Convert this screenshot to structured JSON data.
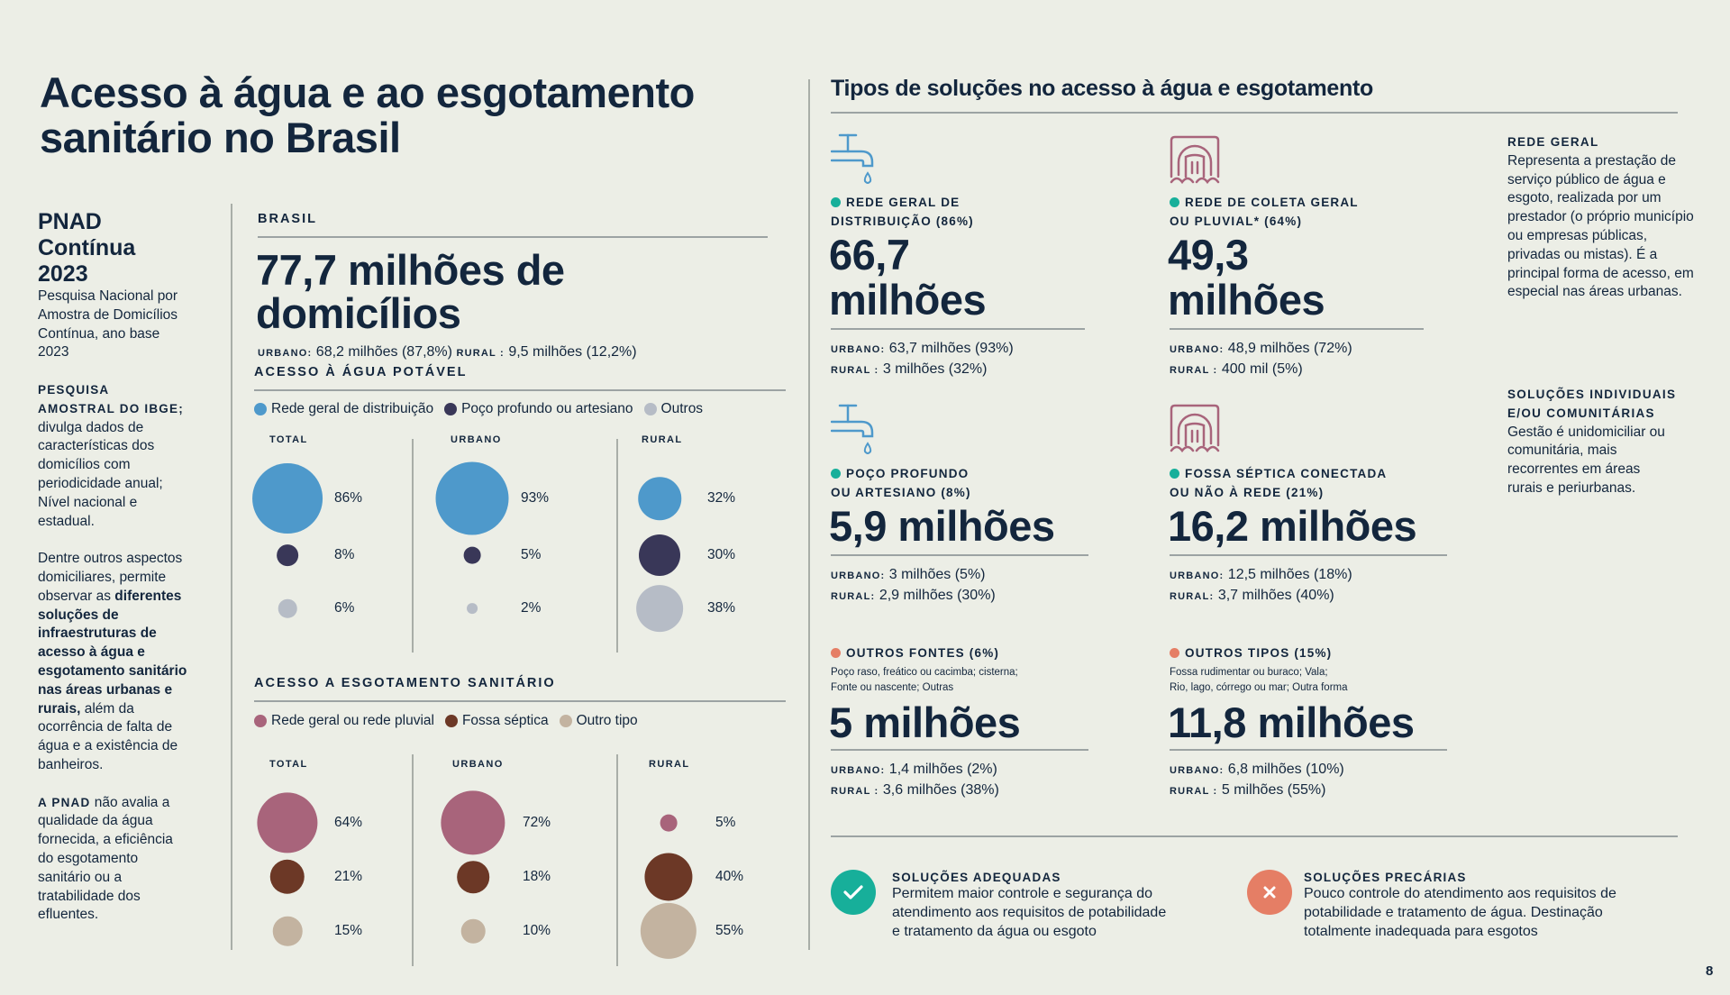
{
  "title": "Acesso à água e ao esgotamento sanitário no Brasil",
  "sidebar": {
    "heading_lines": [
      "PNAD",
      "Contínua",
      "2023"
    ],
    "subtitle": "Pesquisa Nacional por Amostra de Domicílios Contínua, ano base 2023",
    "p1_caps": "PESQUISA AMOSTRAL DO IBGE;",
    "p1_text": "divulga dados de características dos domicílios com periodicidade anual; Nível nacional e estadual.",
    "p2_text_a": "Dentre outros aspectos domiciliares, permite observar as",
    "p2_bold": "diferentes soluções de infraestruturas de acesso à água e esgotamento sanitário nas áreas urbanas e rurais,",
    "p2_text_b": "além da ocorrência de falta de água e a existência de banheiros.",
    "p3_caps": "A PNAD",
    "p3_text": "não avalia a qualidade da água fornecida, a eficiência do esgotamento sanitário ou a tratabilidade dos efluentes."
  },
  "brasil": {
    "label": "BRASIL",
    "headline": "77,7 milhões de domicílios",
    "urbano_label": "URBANO:",
    "urbano_value": "68,2 milhões (87,8%)",
    "rural_label": "RURAL :",
    "rural_value": "9,5 milhões (12,2%)"
  },
  "chart_data": [
    {
      "type": "bubble",
      "title": "ACESSO À ÁGUA POTÁVEL",
      "categories": [
        "TOTAL",
        "URBANO",
        "RURAL"
      ],
      "series": [
        {
          "name": "Rede geral de distribuição",
          "color": "#4E99CB",
          "values": [
            86,
            93,
            32
          ],
          "labels": [
            "86%",
            "93%",
            "32%"
          ]
        },
        {
          "name": "Poço profundo ou artesiano",
          "color": "#393758",
          "values": [
            8,
            5,
            30
          ],
          "labels": [
            "8%",
            "5%",
            "30%"
          ]
        },
        {
          "name": "Outros",
          "color": "#B6BCC6",
          "values": [
            6,
            2,
            38
          ],
          "labels": [
            "6%",
            "2%",
            "38%"
          ]
        }
      ]
    },
    {
      "type": "bubble",
      "title": "ACESSO A ESGOTAMENTO SANITÁRIO",
      "categories": [
        "TOTAL",
        "URBANO",
        "RURAL"
      ],
      "series": [
        {
          "name": "Rede geral ou rede pluvial",
          "color": "#A8647B",
          "values": [
            64,
            72,
            5
          ],
          "labels": [
            "64%",
            "72%",
            "5%"
          ]
        },
        {
          "name": "Fossa séptica",
          "color": "#6C3826",
          "values": [
            21,
            18,
            40
          ],
          "labels": [
            "21%",
            "18%",
            "40%"
          ]
        },
        {
          "name": "Outro tipo",
          "color": "#C3B3A0",
          "values": [
            15,
            10,
            55
          ],
          "labels": [
            "15%",
            "10%",
            "55%"
          ]
        }
      ]
    }
  ],
  "solutions": {
    "title": "Tipos de soluções no acesso à água e esgotamento",
    "cards": [
      {
        "icon": "faucet-icon",
        "bullet_color": "#17AF9A",
        "label_l1": "REDE GERAL DE",
        "label_l2": "DISTRIBUIÇÃO (86%)",
        "num_l1": "66,7",
        "num_l2": "milhões",
        "urbano_k": "URBANO:",
        "urbano_v": "63,7 milhões (93%)",
        "rural_k": "RURAL :",
        "rural_v": "3 milhões (32%)"
      },
      {
        "icon": "sewer-outlet-icon",
        "bullet_color": "#17AF9A",
        "label_l1": "REDE DE COLETA GERAL",
        "label_l2": "OU PLUVIAL*  (64%)",
        "num_l1": "49,3",
        "num_l2": "milhões",
        "urbano_k": "URBANO:",
        "urbano_v": "48,9 milhões  (72%)",
        "rural_k": "RURAL :",
        "rural_v": "400 mil  (5%)"
      },
      {
        "icon": "faucet-icon",
        "bullet_color": "#17AF9A",
        "label_l1": "POÇO PROFUNDO",
        "label_l2": "OU ARTESIANO (8%)",
        "num_l1": "5,9 milhões",
        "urbano_k": "URBANO:",
        "urbano_v": "3 milhões (5%)",
        "rural_k": "RURAL:",
        "rural_v": "2,9 milhões (30%)"
      },
      {
        "icon": "sewer-outlet-icon",
        "bullet_color": "#17AF9A",
        "label_l1": "FOSSA SÉPTICA CONECTADA",
        "label_l2": "OU NÃO À REDE (21%)",
        "num_l1": "16,2 milhões",
        "urbano_k": "URBANO:",
        "urbano_v": "12,5 milhões  (18%)",
        "rural_k": "RURAL:",
        "rural_v": "3,7 milhões  (40%)"
      },
      {
        "bullet_color": "#E57E65",
        "label_l1": "OUTROS FONTES (6%)",
        "sub_l1": "Poço raso, freático ou cacimba; cisterna;",
        "sub_l2": "Fonte ou nascente; Outras",
        "num_l1": "5 milhões",
        "urbano_k": "URBANO:",
        "urbano_v": "1,4 milhões (2%)",
        "rural_k": "RURAL :",
        "rural_v": "3,6 milhões (38%)"
      },
      {
        "bullet_color": "#E57E65",
        "label_l1": "OUTROS TIPOS (15%)",
        "sub_l1": "Fossa rudimentar ou buraco; Vala;",
        "sub_l2": "Rio, lago, córrego ou mar; Outra forma",
        "num_l1": "11,8 milhões",
        "urbano_k": "URBANO:",
        "urbano_v": "6,8 milhões  (10%)",
        "rural_k": "RURAL :",
        "rural_v": "5 milhões  (55%)"
      }
    ]
  },
  "notes": {
    "rede_title": "REDE GERAL",
    "rede_text": "Representa a prestação de serviço público de água e esgoto, realizada por um prestador (o próprio município ou empresas públicas, privadas ou mistas). É a principal forma de acesso, em especial nas áreas urbanas.",
    "ind_title_l1": "SOLUÇÕES INDIVIDUAIS",
    "ind_title_l2": "E/OU COMUNITÁRIAS",
    "ind_text": "Gestão é unidomiciliar ou comunitária, mais recorrentes em áreas rurais e periurbanas."
  },
  "footer": {
    "adequate_color": "#17AF9A",
    "adequate_title": "SOLUÇÕES ADEQUADAS",
    "adequate_l1": "Permitem maior controle e segurança do",
    "adequate_l2": "atendimento aos requisitos de potabilidade",
    "adequate_l3": "e tratamento da água ou esgoto",
    "precarious_color": "#E57E65",
    "precarious_title": "SOLUÇÕES PRECÁRIAS",
    "precarious_l1": "Pouco controle do atendimento aos requisitos de",
    "precarious_l2": "potabilidade e tratamento de água. Destinação",
    "precarious_l3": "totalmente  inadequada para esgotos",
    "page_number": "8"
  }
}
